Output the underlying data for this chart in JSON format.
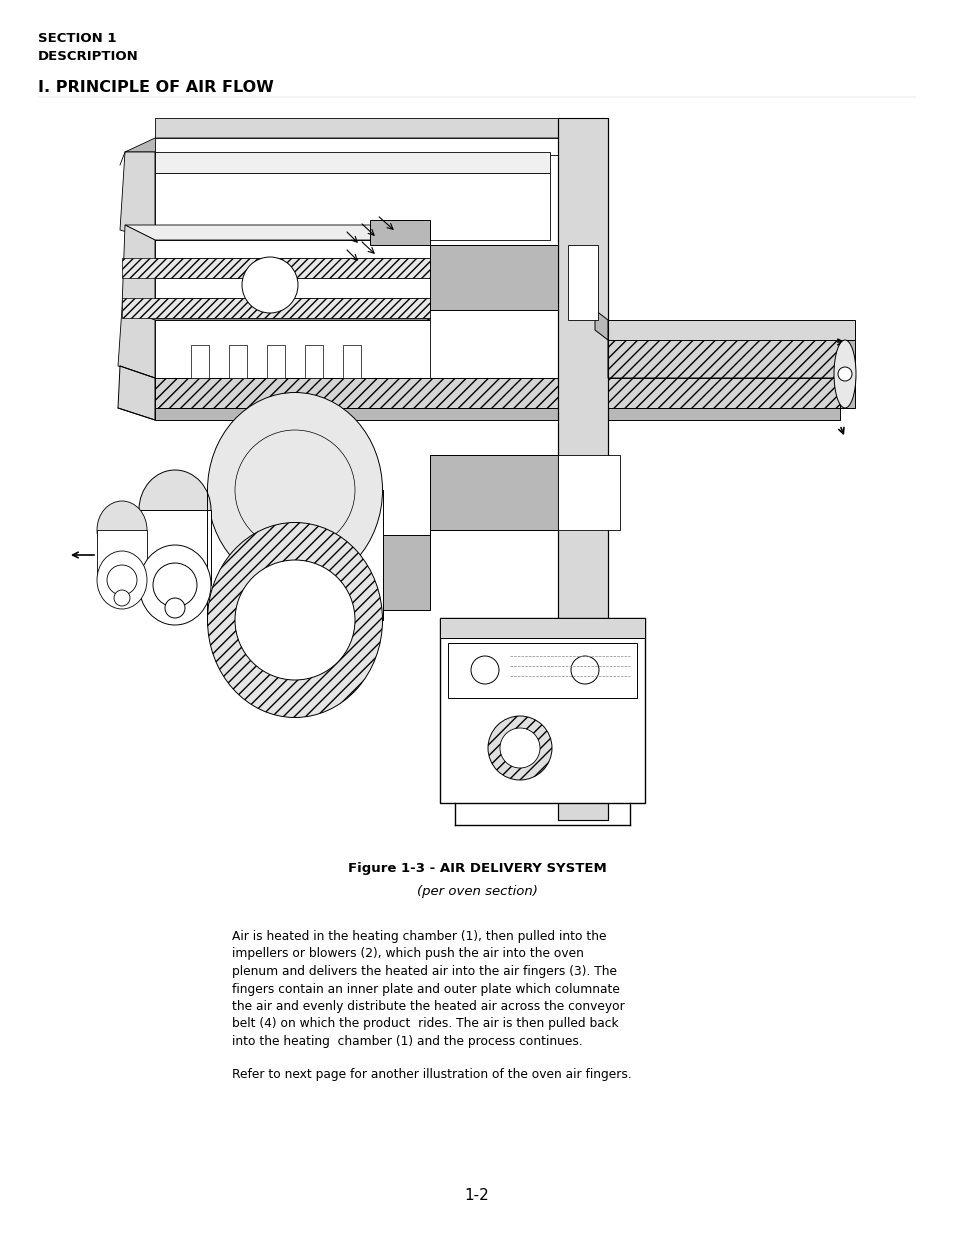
{
  "bg_color": "#ffffff",
  "section_line1": "SECTION 1",
  "section_line2": "DESCRIPTION",
  "main_title": "I. PRINCIPLE OF AIR FLOW",
  "figure_caption_line1": "Figure 1-3 - AIR DELIVERY SYSTEM",
  "figure_caption_line2": "(per oven section)",
  "body_text_lines": [
    "Air is heated in the heating chamber (1), then pulled into the",
    "impellers or blowers (2), which push the air into the oven",
    "plenum and delivers the heated air into the air fingers (3). The",
    "fingers contain an inner plate and outer plate which columnate",
    "the air and evenly distribute the heated air across the conveyor",
    "belt (4) on which the product  rides. The air is then pulled back",
    "into the heating  chamber (1) and the process continues."
  ],
  "refer_text": "Refer to next page for another illustration of the oven air fingers.",
  "page_number": "1-2",
  "text_color": "#000000",
  "gray_light": "#d0d0d0",
  "gray_mid": "#b0b0b0",
  "gray_dark": "#808080"
}
